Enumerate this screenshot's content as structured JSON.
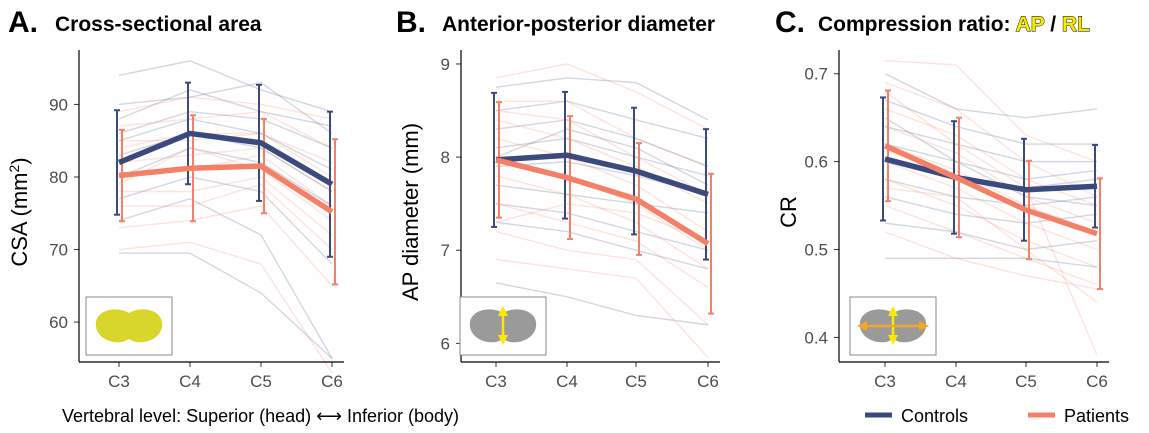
{
  "colors": {
    "controls": "#3b4a7c",
    "patients": "#f58068",
    "highlight": "#f6e90a",
    "cord_fill": "#d8d62a",
    "arrow": "#ffe800",
    "arrow_orange": "#f5a623"
  },
  "chart_data": [
    {
      "type": "line",
      "letter": "A.",
      "title": "Cross-sectional area",
      "ylabel_main": "CSA (mm",
      "ylabel_sup": "2",
      "ylabel_close": ")",
      "categories": [
        "C3",
        "C4",
        "C5",
        "C6"
      ],
      "ylim": [
        54.5,
        97.5
      ],
      "yticks": [
        60,
        70,
        80,
        90
      ],
      "inset_icon": "cord-area-icon",
      "series": [
        {
          "name": "Controls",
          "values": [
            82.0,
            86.0,
            84.7,
            79.0
          ],
          "err": [
            7.2,
            7.0,
            8.0,
            10.0
          ]
        },
        {
          "name": "Patients",
          "values": [
            80.2,
            81.2,
            81.5,
            75.2
          ],
          "err": [
            6.3,
            7.3,
            6.5,
            10.0
          ]
        }
      ],
      "subjects_controls": [
        [
          94,
          96,
          92,
          89
        ],
        [
          90,
          91,
          93,
          86
        ],
        [
          86,
          89,
          88,
          84
        ],
        [
          85,
          88,
          86,
          81
        ],
        [
          83,
          86,
          84,
          78
        ],
        [
          80,
          84,
          82,
          76
        ],
        [
          77,
          80,
          78,
          68
        ],
        [
          74,
          77,
          72,
          55
        ],
        [
          69.5,
          69.5,
          64,
          55
        ],
        [
          88,
          92,
          89,
          87
        ]
      ],
      "subjects_patients": [
        [
          89,
          91,
          90,
          88
        ],
        [
          87,
          88,
          89,
          84
        ],
        [
          85,
          85,
          86,
          80
        ],
        [
          82,
          83,
          84,
          78
        ],
        [
          80,
          81,
          83,
          76
        ],
        [
          78,
          78,
          80,
          72
        ],
        [
          76,
          76,
          79,
          70
        ],
        [
          73,
          74,
          76,
          65
        ],
        [
          70,
          71,
          68,
          53
        ],
        [
          84,
          86,
          86,
          82
        ],
        [
          79,
          84,
          81,
          74
        ]
      ]
    },
    {
      "type": "line",
      "letter": "B.",
      "title": "Anterior-posterior diameter",
      "ylabel_main": "AP diameter (mm)",
      "categories": [
        "C3",
        "C4",
        "C5",
        "C6"
      ],
      "ylim": [
        5.8,
        9.15
      ],
      "yticks": [
        6,
        7,
        8,
        9
      ],
      "inset_icon": "ap-arrow-icon",
      "series": [
        {
          "name": "Controls",
          "values": [
            7.97,
            8.02,
            7.85,
            7.6
          ],
          "err": [
            0.72,
            0.68,
            0.68,
            0.7
          ]
        },
        {
          "name": "Patients",
          "values": [
            7.97,
            7.78,
            7.55,
            7.07
          ],
          "err": [
            0.62,
            0.66,
            0.6,
            0.75
          ]
        }
      ],
      "subjects_controls": [
        [
          8.75,
          8.85,
          8.8,
          8.4
        ],
        [
          8.5,
          8.6,
          8.4,
          8.2
        ],
        [
          8.3,
          8.4,
          8.2,
          7.9
        ],
        [
          8.1,
          8.2,
          8.0,
          7.8
        ],
        [
          7.9,
          7.95,
          7.8,
          7.6
        ],
        [
          7.7,
          7.6,
          7.5,
          7.4
        ],
        [
          7.5,
          7.4,
          7.2,
          7.0
        ],
        [
          7.3,
          7.2,
          7.0,
          6.8
        ],
        [
          6.65,
          6.5,
          6.3,
          6.2
        ],
        [
          8.0,
          8.3,
          8.1,
          7.7
        ]
      ],
      "subjects_patients": [
        [
          8.85,
          9.0,
          8.7,
          8.3
        ],
        [
          8.6,
          8.6,
          8.2,
          7.9
        ],
        [
          8.4,
          8.2,
          7.9,
          7.5
        ],
        [
          8.2,
          8.0,
          7.7,
          7.2
        ],
        [
          8.0,
          7.8,
          7.5,
          7.0
        ],
        [
          7.8,
          7.6,
          7.3,
          6.8
        ],
        [
          7.5,
          7.3,
          7.1,
          6.6
        ],
        [
          7.2,
          7.0,
          6.9,
          6.2
        ],
        [
          6.9,
          6.8,
          6.7,
          5.85
        ],
        [
          8.5,
          8.4,
          8.0,
          7.6
        ],
        [
          7.3,
          7.5,
          7.4,
          7.1
        ]
      ]
    },
    {
      "type": "line",
      "letter": "C.",
      "title": "Compression ratio: ",
      "title_ap": "AP",
      "title_sep": " / ",
      "title_rl": "RL",
      "ylabel_main": "CR",
      "categories": [
        "C3",
        "C4",
        "C5",
        "C6"
      ],
      "ylim": [
        0.372,
        0.727
      ],
      "yticks": [
        0.4,
        0.5,
        0.6,
        0.7
      ],
      "inset_icon": "ap-rl-arrows-icon",
      "series": [
        {
          "name": "Controls",
          "values": [
            0.603,
            0.582,
            0.568,
            0.572
          ],
          "err": [
            0.07,
            0.064,
            0.058,
            0.047
          ]
        },
        {
          "name": "Patients",
          "values": [
            0.618,
            0.582,
            0.545,
            0.518
          ],
          "err": [
            0.063,
            0.068,
            0.056,
            0.063
          ]
        }
      ],
      "subjects_controls": [
        [
          0.7,
          0.66,
          0.65,
          0.66
        ],
        [
          0.67,
          0.64,
          0.62,
          0.62
        ],
        [
          0.64,
          0.62,
          0.6,
          0.6
        ],
        [
          0.62,
          0.6,
          0.58,
          0.59
        ],
        [
          0.6,
          0.58,
          0.57,
          0.58
        ],
        [
          0.58,
          0.56,
          0.55,
          0.56
        ],
        [
          0.56,
          0.54,
          0.53,
          0.54
        ],
        [
          0.53,
          0.52,
          0.5,
          0.51
        ],
        [
          0.49,
          0.49,
          0.49,
          0.48
        ],
        [
          0.65,
          0.6,
          0.56,
          0.55
        ]
      ],
      "subjects_patients": [
        [
          0.715,
          0.71,
          0.63,
          0.6
        ],
        [
          0.69,
          0.66,
          0.6,
          0.56
        ],
        [
          0.66,
          0.63,
          0.58,
          0.55
        ],
        [
          0.64,
          0.61,
          0.56,
          0.53
        ],
        [
          0.62,
          0.59,
          0.55,
          0.52
        ],
        [
          0.6,
          0.57,
          0.53,
          0.5
        ],
        [
          0.58,
          0.55,
          0.51,
          0.48
        ],
        [
          0.55,
          0.52,
          0.49,
          0.46
        ],
        [
          0.52,
          0.49,
          0.47,
          0.455
        ],
        [
          0.68,
          0.62,
          0.57,
          0.38
        ],
        [
          0.57,
          0.56,
          0.5,
          0.44
        ]
      ]
    }
  ],
  "footer": {
    "prefix": "Vertebral level: Superior (head)",
    "arrow": "⟷",
    "suffix": "Inferior (body)"
  },
  "legend": [
    {
      "label": "Controls",
      "key": "controls"
    },
    {
      "label": "Patients",
      "key": "patients"
    }
  ]
}
